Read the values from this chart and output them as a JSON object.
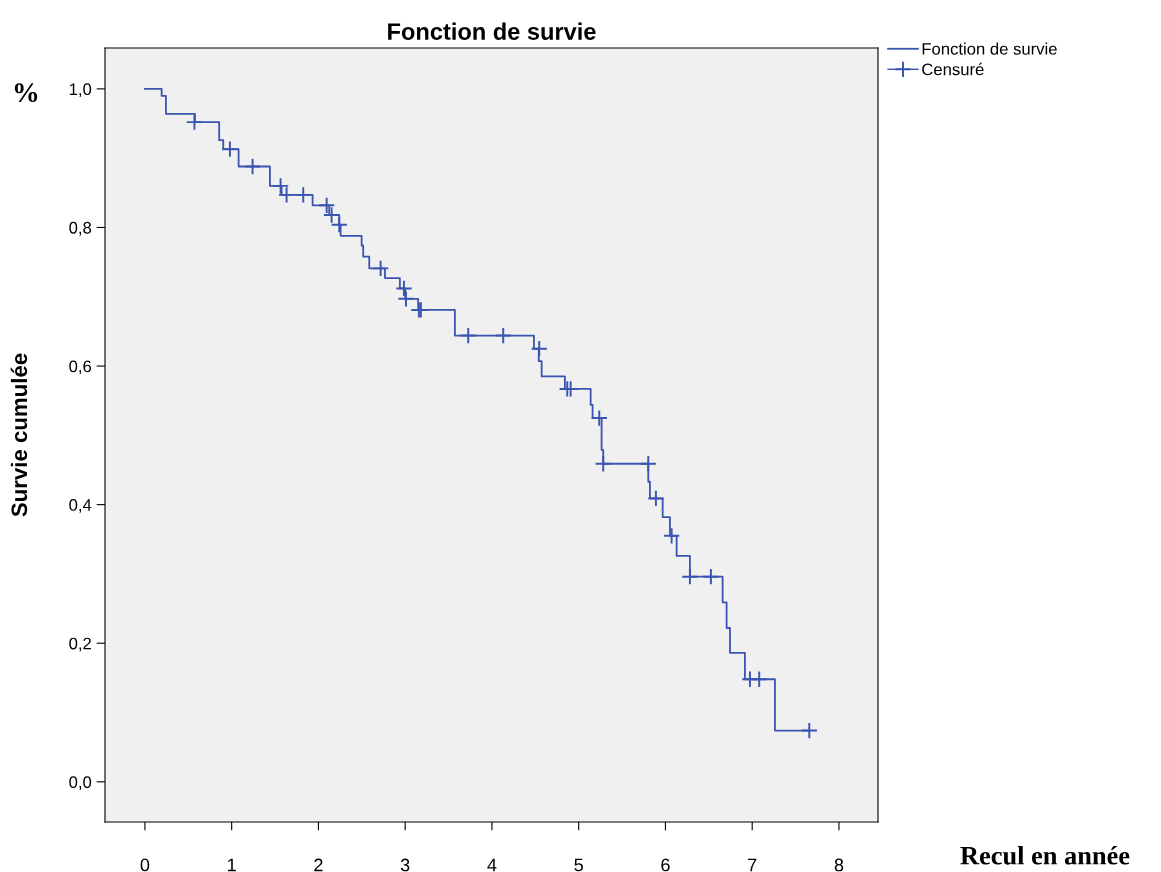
{
  "chart_data": {
    "type": "step",
    "title": "Fonction de survie",
    "xlabel": "Recul en année",
    "ylabel": "Survie cumulée",
    "annotations": [
      "%"
    ],
    "xlim": [
      -0.46,
      8.45
    ],
    "ylim": [
      -0.058,
      1.059
    ],
    "xticks": [
      0,
      1,
      2,
      3,
      4,
      5,
      6,
      7,
      8
    ],
    "yticks": [
      {
        "value": 0,
        "label": "0,0"
      },
      {
        "value": 0.2,
        "label": "0,2"
      },
      {
        "value": 0.4,
        "label": "0,4"
      },
      {
        "value": 0.6,
        "label": "0,6"
      },
      {
        "value": 0.8,
        "label": "0,8"
      },
      {
        "value": 1.0,
        "label": "1,0"
      }
    ],
    "grid": false,
    "legend": "top right",
    "series": [
      {
        "name": "Fonction de survie",
        "color": "#3a55b0",
        "marker": "none",
        "line_style": "solid",
        "x": [
          0,
          0.193,
          0.242,
          0.576,
          0.856,
          0.903,
          1.08,
          1.441,
          1.576,
          1.933,
          2.124,
          2.24,
          2.256,
          2.498,
          2.516,
          2.586,
          2.767,
          2.939,
          3.001,
          3.15,
          3.573,
          4.484,
          4.54,
          4.573,
          4.841,
          5.138,
          5.16,
          5.264,
          5.283,
          5.802,
          5.821,
          5.968,
          6.052,
          6.129,
          6.282,
          6.659,
          6.705,
          6.744,
          6.916,
          7.262,
          7.658
        ],
        "values": [
          1.0,
          0.99,
          0.964,
          0.952,
          0.926,
          0.913,
          0.888,
          0.86,
          0.847,
          0.832,
          0.818,
          0.804,
          0.788,
          0.774,
          0.758,
          0.741,
          0.727,
          0.712,
          0.697,
          0.681,
          0.644,
          0.625,
          0.607,
          0.585,
          0.567,
          0.544,
          0.525,
          0.479,
          0.459,
          0.433,
          0.409,
          0.382,
          0.355,
          0.326,
          0.296,
          0.259,
          0.222,
          0.186,
          0.148,
          0.074,
          0.074
        ]
      },
      {
        "name": "Censuré",
        "type": "scatter",
        "color": "#3a55b0",
        "marker": "cross",
        "x": [
          0.571,
          0.98,
          1.241,
          1.564,
          1.633,
          1.825,
          2.095,
          2.152,
          2.24,
          2.717,
          2.986,
          3.009,
          3.158,
          3.181,
          3.727,
          4.13,
          4.545,
          4.868,
          4.907,
          5.237,
          5.283,
          5.802,
          5.89,
          6.071,
          6.282,
          6.524,
          6.974,
          7.081,
          7.658
        ],
        "values": [
          0.952,
          0.913,
          0.888,
          0.86,
          0.847,
          0.847,
          0.832,
          0.818,
          0.804,
          0.741,
          0.712,
          0.697,
          0.681,
          0.681,
          0.644,
          0.644,
          0.625,
          0.567,
          0.567,
          0.525,
          0.459,
          0.459,
          0.409,
          0.355,
          0.296,
          0.296,
          0.148,
          0.148,
          0.074
        ]
      }
    ]
  }
}
